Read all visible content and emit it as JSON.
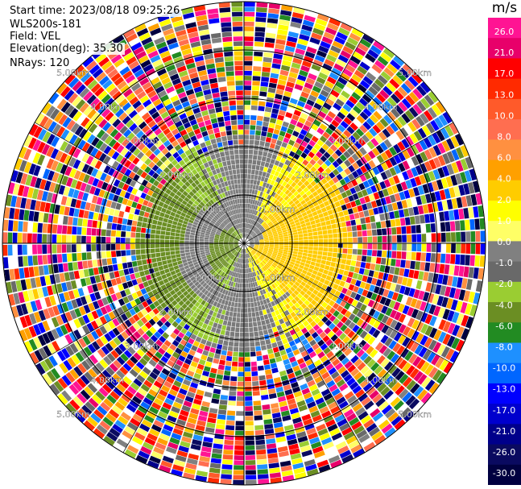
{
  "header": {
    "start_time": "Start time: 2023/08/18 09:25:26",
    "instrument": "WLS200s-181",
    "field": "Field: VEL",
    "elevation": "Elevation(deg): 35.30",
    "nrays": "NRays: 120"
  },
  "chart_data": {
    "type": "heatmap",
    "projection": "polar PPI",
    "field": "VEL",
    "units": "m/s",
    "n_rays": 120,
    "range_ring_labels": [
      "1.00km",
      "2.00km",
      "3.00km",
      "4.00km",
      "5.00km"
    ],
    "range_rings_km": [
      1,
      2,
      3,
      4,
      5
    ],
    "colorbar": {
      "title": "m/s",
      "tick_labels": [
        "26.0",
        "21.0",
        "17.0",
        "13.0",
        "10.0",
        "8.0",
        "6.0",
        "4.0",
        "2.0",
        "1.0",
        "0.0",
        "-1.0",
        "-2.0",
        "-4.0",
        "-6.0",
        "-8.0",
        "-10.0",
        "-13.0",
        "-17.0",
        "-21.0",
        "-26.0",
        "-30.0"
      ],
      "colors": [
        "#ff1493",
        "#e8006a",
        "#ff0000",
        "#ff2a00",
        "#ff5a2a",
        "#ff6e50",
        "#ff9040",
        "#ffa000",
        "#ffcc00",
        "#ffff00",
        "#ffff66",
        "#808080",
        "#696969",
        "#9acd32",
        "#6b8e23",
        "#228b22",
        "#1e90ff",
        "#0066ff",
        "#0000ff",
        "#0000cd",
        "#00008b",
        "#0a0a60",
        "#000040"
      ]
    },
    "center_pattern": "negative (green) to the west, positive (yellow) to the east, near-zero (gray) swirl at center; noisy random colors beyond ~2.3 km"
  }
}
